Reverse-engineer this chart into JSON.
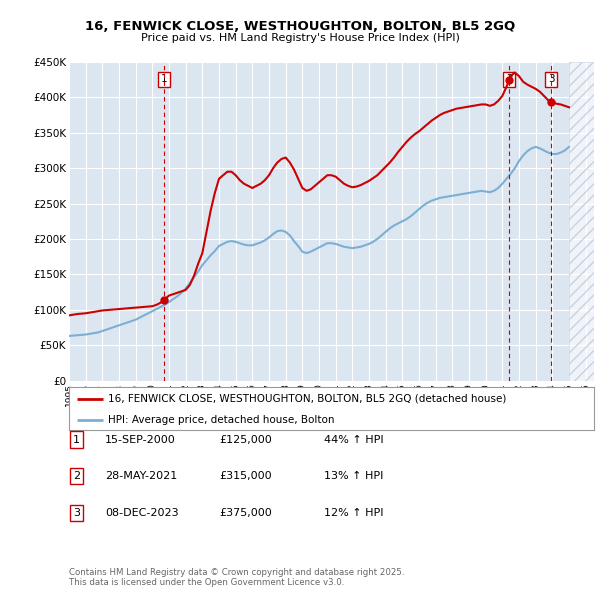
{
  "title1": "16, FENWICK CLOSE, WESTHOUGHTON, BOLTON, BL5 2GQ",
  "title2": "Price paid vs. HM Land Registry's House Price Index (HPI)",
  "legend1": "16, FENWICK CLOSE, WESTHOUGHTON, BOLTON, BL5 2GQ (detached house)",
  "legend2": "HPI: Average price, detached house, Bolton",
  "footnote": "Contains HM Land Registry data © Crown copyright and database right 2025.\nThis data is licensed under the Open Government Licence v3.0.",
  "sales": [
    {
      "num": 1,
      "date": "15-SEP-2000",
      "price": "£125,000",
      "hpi_diff": "44% ↑ HPI",
      "x": 2000.71
    },
    {
      "num": 2,
      "date": "28-MAY-2021",
      "price": "£315,000",
      "hpi_diff": "13% ↑ HPI",
      "x": 2021.41
    },
    {
      "num": 3,
      "date": "08-DEC-2023",
      "price": "£375,000",
      "hpi_diff": "12% ↑ HPI",
      "x": 2023.93
    }
  ],
  "plot_bg_color": "#dce6f1",
  "red_color": "#cc0000",
  "blue_color": "#7bafd4",
  "ylim": [
    0,
    450000
  ],
  "xlim_start": 1995,
  "xlim_end": 2026.5,
  "yticks": [
    0,
    50000,
    100000,
    150000,
    200000,
    250000,
    300000,
    350000,
    400000,
    450000
  ],
  "ylabels": [
    "£0",
    "£50K",
    "£100K",
    "£150K",
    "£200K",
    "£250K",
    "£300K",
    "£350K",
    "£400K",
    "£450K"
  ],
  "hpi_x": [
    1995.0,
    1995.25,
    1995.5,
    1995.75,
    1996.0,
    1996.25,
    1996.5,
    1996.75,
    1997.0,
    1997.25,
    1997.5,
    1997.75,
    1998.0,
    1998.25,
    1998.5,
    1998.75,
    1999.0,
    1999.25,
    1999.5,
    1999.75,
    2000.0,
    2000.25,
    2000.5,
    2000.75,
    2001.0,
    2001.25,
    2001.5,
    2001.75,
    2002.0,
    2002.25,
    2002.5,
    2002.75,
    2003.0,
    2003.25,
    2003.5,
    2003.75,
    2004.0,
    2004.25,
    2004.5,
    2004.75,
    2005.0,
    2005.25,
    2005.5,
    2005.75,
    2006.0,
    2006.25,
    2006.5,
    2006.75,
    2007.0,
    2007.25,
    2007.5,
    2007.75,
    2008.0,
    2008.25,
    2008.5,
    2008.75,
    2009.0,
    2009.25,
    2009.5,
    2009.75,
    2010.0,
    2010.25,
    2010.5,
    2010.75,
    2011.0,
    2011.25,
    2011.5,
    2011.75,
    2012.0,
    2012.25,
    2012.5,
    2012.75,
    2013.0,
    2013.25,
    2013.5,
    2013.75,
    2014.0,
    2014.25,
    2014.5,
    2014.75,
    2015.0,
    2015.25,
    2015.5,
    2015.75,
    2016.0,
    2016.25,
    2016.5,
    2016.75,
    2017.0,
    2017.25,
    2017.5,
    2017.75,
    2018.0,
    2018.25,
    2018.5,
    2018.75,
    2019.0,
    2019.25,
    2019.5,
    2019.75,
    2020.0,
    2020.25,
    2020.5,
    2020.75,
    2021.0,
    2021.25,
    2021.5,
    2021.75,
    2022.0,
    2022.25,
    2022.5,
    2022.75,
    2023.0,
    2023.25,
    2023.5,
    2023.75,
    2024.0,
    2024.25,
    2024.5,
    2024.75,
    2025.0
  ],
  "hpi_y": [
    63000,
    63500,
    64000,
    64500,
    65000,
    66000,
    67000,
    68000,
    70000,
    72000,
    74000,
    76000,
    78000,
    80000,
    82000,
    84000,
    86000,
    89000,
    92000,
    95000,
    98000,
    101000,
    104000,
    107000,
    111000,
    115000,
    119000,
    124000,
    130000,
    138000,
    146000,
    154000,
    163000,
    170000,
    177000,
    183000,
    190000,
    193000,
    196000,
    197000,
    196000,
    194000,
    192000,
    191000,
    191000,
    193000,
    195000,
    198000,
    202000,
    207000,
    211000,
    212000,
    210000,
    205000,
    197000,
    190000,
    182000,
    180000,
    182000,
    185000,
    188000,
    191000,
    194000,
    194000,
    193000,
    191000,
    189000,
    188000,
    187000,
    188000,
    189000,
    191000,
    193000,
    196000,
    200000,
    205000,
    210000,
    215000,
    219000,
    222000,
    225000,
    228000,
    232000,
    237000,
    242000,
    247000,
    251000,
    254000,
    256000,
    258000,
    259000,
    260000,
    261000,
    262000,
    263000,
    264000,
    265000,
    266000,
    267000,
    268000,
    267000,
    266000,
    268000,
    272000,
    278000,
    285000,
    292000,
    300000,
    310000,
    318000,
    324000,
    328000,
    330000,
    328000,
    325000,
    322000,
    320000,
    320000,
    322000,
    325000,
    330000
  ],
  "red_x": [
    1995.0,
    1995.25,
    1995.5,
    1995.75,
    1996.0,
    1996.25,
    1996.5,
    1996.75,
    1997.0,
    1997.25,
    1997.5,
    1997.75,
    1998.0,
    1998.25,
    1998.5,
    1998.75,
    1999.0,
    1999.25,
    1999.5,
    1999.75,
    2000.0,
    2000.25,
    2000.5,
    2000.75,
    2001.0,
    2001.25,
    2001.5,
    2001.75,
    2002.0,
    2002.25,
    2002.5,
    2002.75,
    2003.0,
    2003.25,
    2003.5,
    2003.75,
    2004.0,
    2004.25,
    2004.5,
    2004.75,
    2005.0,
    2005.25,
    2005.5,
    2005.75,
    2006.0,
    2006.25,
    2006.5,
    2006.75,
    2007.0,
    2007.25,
    2007.5,
    2007.75,
    2008.0,
    2008.25,
    2008.5,
    2008.75,
    2009.0,
    2009.25,
    2009.5,
    2009.75,
    2010.0,
    2010.25,
    2010.5,
    2010.75,
    2011.0,
    2011.25,
    2011.5,
    2011.75,
    2012.0,
    2012.25,
    2012.5,
    2012.75,
    2013.0,
    2013.25,
    2013.5,
    2013.75,
    2014.0,
    2014.25,
    2014.5,
    2014.75,
    2015.0,
    2015.25,
    2015.5,
    2015.75,
    2016.0,
    2016.25,
    2016.5,
    2016.75,
    2017.0,
    2017.25,
    2017.5,
    2017.75,
    2018.0,
    2018.25,
    2018.5,
    2018.75,
    2019.0,
    2019.25,
    2019.5,
    2019.75,
    2020.0,
    2020.25,
    2020.5,
    2020.75,
    2021.0,
    2021.25,
    2021.5,
    2021.75,
    2022.0,
    2022.25,
    2022.5,
    2022.75,
    2023.0,
    2023.25,
    2023.5,
    2023.75,
    2024.0,
    2024.25,
    2024.5,
    2024.75,
    2025.0
  ],
  "red_y": [
    92000,
    93000,
    94000,
    94500,
    95000,
    96000,
    97000,
    98000,
    99000,
    99500,
    100000,
    100500,
    101000,
    101500,
    102000,
    102500,
    103000,
    103500,
    104000,
    104500,
    105000,
    107000,
    110000,
    115000,
    120000,
    122000,
    124000,
    126000,
    128000,
    135000,
    148000,
    165000,
    180000,
    210000,
    240000,
    265000,
    285000,
    290000,
    295000,
    295000,
    290000,
    283000,
    278000,
    275000,
    272000,
    275000,
    278000,
    283000,
    290000,
    300000,
    308000,
    313000,
    315000,
    308000,
    298000,
    285000,
    272000,
    268000,
    270000,
    275000,
    280000,
    285000,
    290000,
    290000,
    288000,
    283000,
    278000,
    275000,
    273000,
    274000,
    276000,
    279000,
    282000,
    286000,
    290000,
    296000,
    302000,
    308000,
    315000,
    323000,
    330000,
    337000,
    343000,
    348000,
    352000,
    357000,
    362000,
    367000,
    371000,
    375000,
    378000,
    380000,
    382000,
    384000,
    385000,
    386000,
    387000,
    388000,
    389000,
    390000,
    390000,
    388000,
    390000,
    395000,
    402000,
    415000,
    430000,
    435000,
    430000,
    422000,
    418000,
    415000,
    412000,
    408000,
    402000,
    396000,
    393000,
    391000,
    390000,
    388000,
    386000
  ]
}
